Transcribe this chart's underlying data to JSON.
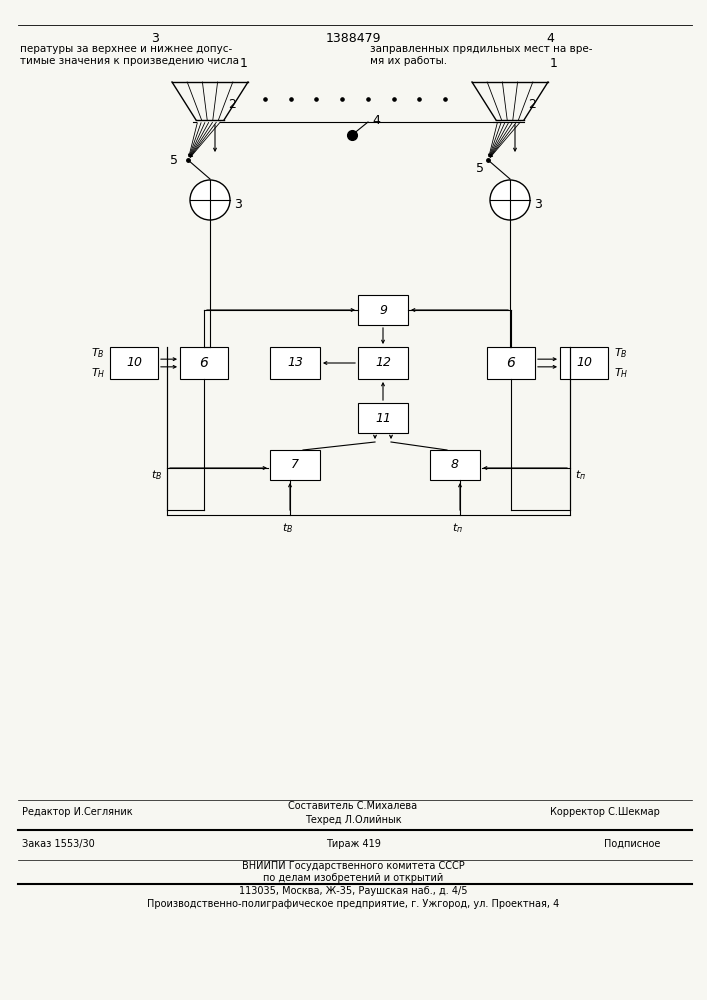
{
  "page_color": "#f7f7f2",
  "title_number": "1388479",
  "page_left": "3",
  "page_right": "4",
  "footer_editor": "Редактор И.Сегляник",
  "footer_composer": "Составитель С.Михалева",
  "footer_techred": "Техред Л.Олийнык",
  "footer_corrector": "Корректор С.Шекмар",
  "footer_order": "Заказ 1553/30",
  "footer_tirazh": "Тираж 419",
  "footer_podp": "Подписное",
  "footer_vnipi": "ВНИИПИ Государственного комитета СССР",
  "footer_po_delam": "по делам изобретений и открытий",
  "footer_address": "113035, Москва, Ж-35, Раушская наб., д. 4/5",
  "footer_proizv": "Производственно-полиграфическое предприятие, г. Ужгород, ул. Проектная, 4"
}
